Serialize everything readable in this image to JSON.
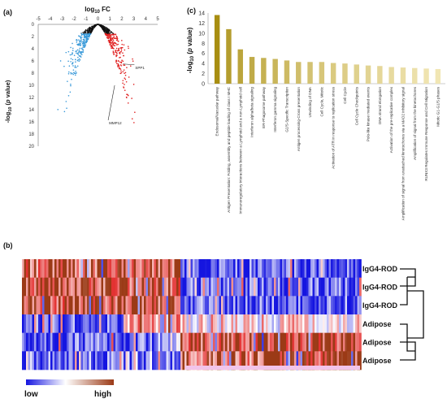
{
  "chart_data": [
    {
      "panel": "(a)",
      "type": "scatter",
      "title": "log10 FC",
      "title_main": "log",
      "title_sub": "10",
      "title_tail": " FC",
      "ylabel_pre": "-log",
      "ylabel_sub": "10",
      "ylabel_mid": " (",
      "ylabel_italic": "p",
      "ylabel_post": " value)",
      "xlim": [
        -5,
        5
      ],
      "ylim": [
        0,
        20
      ],
      "x_ticks": [
        -5,
        -4,
        -3,
        -2,
        -1,
        0,
        1,
        2,
        3,
        4,
        5
      ],
      "y_ticks": [
        0,
        2,
        4,
        6,
        8,
        10,
        12,
        14,
        16,
        18,
        20
      ],
      "annotations": [
        {
          "label": "SPP1",
          "x": 2.1,
          "y": 6.5
        },
        {
          "label": "MMP12",
          "x": 1.4,
          "y": 10.0
        }
      ],
      "colors": {
        "down": "#3a9ad9",
        "up": "#e02020",
        "ns": "#111111",
        "scatter_grey": "#bbbbbb"
      }
    },
    {
      "panel": "(c)",
      "type": "bar",
      "ylabel_pre": "-log",
      "ylabel_sub": "10",
      "ylabel_mid": " (",
      "ylabel_italic": "p",
      "ylabel_post": " value)",
      "ylim": [
        0,
        14
      ],
      "y_ticks": [
        0,
        2,
        4,
        6,
        8,
        10,
        12,
        14
      ],
      "categories": [
        "Endosomal/Vacuolar pathway",
        "Antigen Presentation: Folding, assembly and peptide loading of class I MHC",
        "Immunoregulatory interactions between a Lymphoid and a non-Lymphoid cell",
        "Interferon alpha/beta signaling",
        "ER-Phagosome pathway",
        "Interferon gamma signaling",
        "G2/S-Specific Transcription",
        "Antigen processing-Cross presentation",
        "Unwinding of DNA",
        "Cell Cycle, Mitotic",
        "Activation of ATR in response to replication stress",
        "Cell Cycle",
        "Cell Cycle Checkpoints",
        "Polo-like kinase mediated events",
        "DNA strand elongation",
        "Activation of the pre-replicative complex",
        "Amplification of signal from unattached kinetochores via a MAD2 inhibitory signal",
        "Amplification of signal from the kinetochores",
        "RUNX3 Regulates Immune Response and Cell Migration",
        "Mitotic G1-G1/S phases"
      ],
      "values": [
        13.6,
        10.8,
        6.8,
        5.3,
        5.1,
        4.9,
        4.6,
        4.3,
        4.3,
        4.3,
        4.1,
        4.0,
        3.8,
        3.6,
        3.5,
        3.3,
        3.2,
        3.1,
        3.0,
        2.9
      ],
      "colors": {
        "dark": "#a88e12",
        "light": "#f1e6b4"
      }
    },
    {
      "panel": "(b)",
      "type": "heatmap",
      "rows": [
        "IgG4-ROD",
        "IgG4-ROD",
        "IgG4-ROD",
        "Adipose",
        "Adipose",
        "Adipose"
      ],
      "legend": {
        "low": "low",
        "high": "high"
      },
      "colors": {
        "low": "#1515e0",
        "mid": "#ffffff",
        "high": "#e01818",
        "high_alt": "#9b3a16"
      }
    }
  ]
}
